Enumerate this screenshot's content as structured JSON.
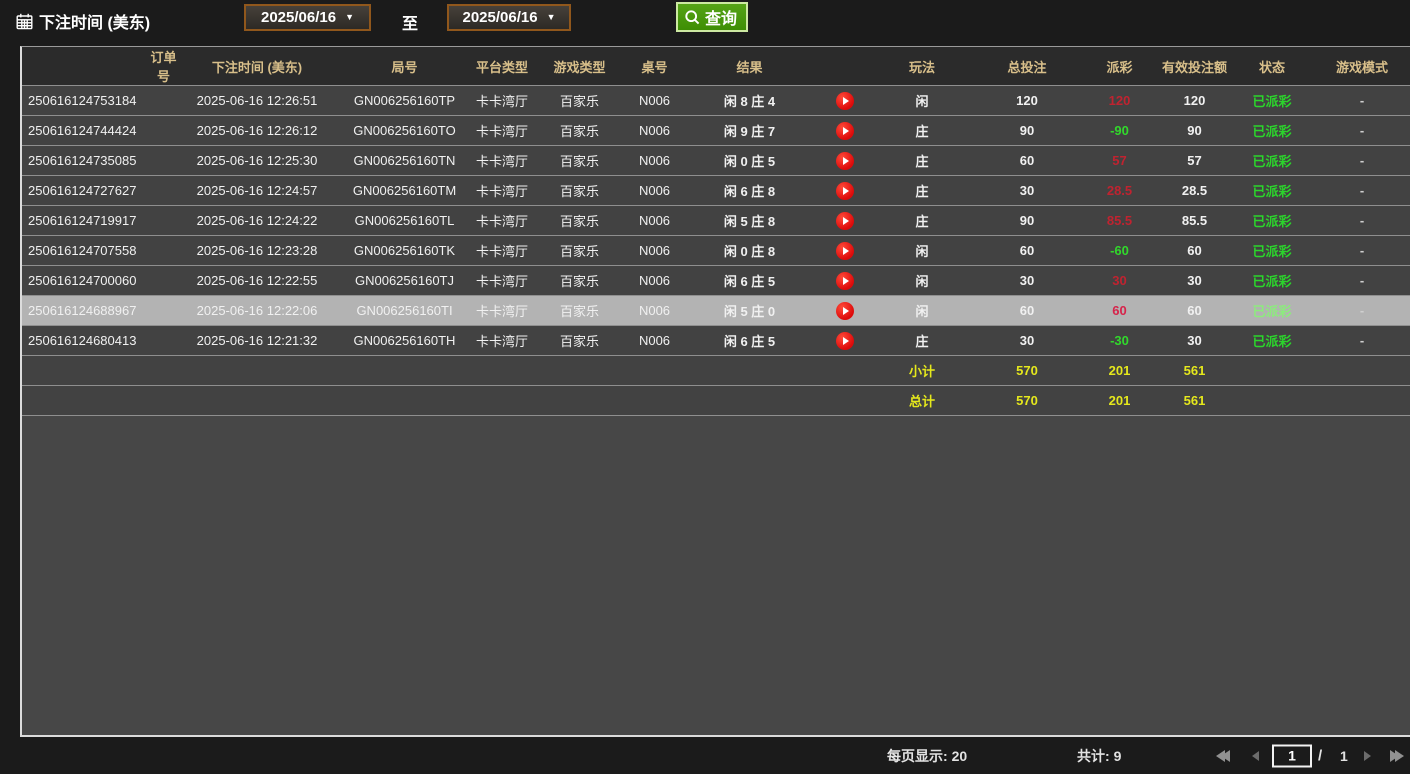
{
  "toolbar": {
    "bet_time_label": "下注时间 (美东)",
    "date_from": "2025/06/16",
    "date_to": "2025/06/16",
    "to_label": "至",
    "query_label": "查询",
    "calendar_icon": "calendar-icon",
    "search_icon": "magnifier-icon"
  },
  "table": {
    "headers": [
      "订单号",
      "下注时间 (美东)",
      "局号",
      "平台类型",
      "游戏类型",
      "桌号",
      "结果",
      "",
      "玩法",
      "总投注",
      "派彩",
      "有效投注额",
      "状态",
      "游戏模式"
    ],
    "rows": [
      {
        "order": "250616124753184",
        "time": "2025-06-16 12:26:51",
        "round": "GN006256160TP",
        "platform": "卡卡湾厅",
        "game": "百家乐",
        "table_no": "N006",
        "result": "闲 8 庄 4",
        "play": "闲",
        "bet": "120",
        "payout": "120",
        "payout_sign": "pos",
        "valid": "120",
        "status": "已派彩",
        "mode": "-",
        "highlight": false
      },
      {
        "order": "250616124744424",
        "time": "2025-06-16 12:26:12",
        "round": "GN006256160TO",
        "platform": "卡卡湾厅",
        "game": "百家乐",
        "table_no": "N006",
        "result": "闲 9 庄 7",
        "play": "庄",
        "bet": "90",
        "payout": "-90",
        "payout_sign": "neg",
        "valid": "90",
        "status": "已派彩",
        "mode": "-",
        "highlight": false
      },
      {
        "order": "250616124735085",
        "time": "2025-06-16 12:25:30",
        "round": "GN006256160TN",
        "platform": "卡卡湾厅",
        "game": "百家乐",
        "table_no": "N006",
        "result": "闲 0 庄 5",
        "play": "庄",
        "bet": "60",
        "payout": "57",
        "payout_sign": "pos",
        "valid": "57",
        "status": "已派彩",
        "mode": "-",
        "highlight": false
      },
      {
        "order": "250616124727627",
        "time": "2025-06-16 12:24:57",
        "round": "GN006256160TM",
        "platform": "卡卡湾厅",
        "game": "百家乐",
        "table_no": "N006",
        "result": "闲 6 庄 8",
        "play": "庄",
        "bet": "30",
        "payout": "28.5",
        "payout_sign": "pos",
        "valid": "28.5",
        "status": "已派彩",
        "mode": "-",
        "highlight": false
      },
      {
        "order": "250616124719917",
        "time": "2025-06-16 12:24:22",
        "round": "GN006256160TL",
        "platform": "卡卡湾厅",
        "game": "百家乐",
        "table_no": "N006",
        "result": "闲 5 庄 8",
        "play": "庄",
        "bet": "90",
        "payout": "85.5",
        "payout_sign": "pos",
        "valid": "85.5",
        "status": "已派彩",
        "mode": "-",
        "highlight": false
      },
      {
        "order": "250616124707558",
        "time": "2025-06-16 12:23:28",
        "round": "GN006256160TK",
        "platform": "卡卡湾厅",
        "game": "百家乐",
        "table_no": "N006",
        "result": "闲 0 庄 8",
        "play": "闲",
        "bet": "60",
        "payout": "-60",
        "payout_sign": "neg",
        "valid": "60",
        "status": "已派彩",
        "mode": "-",
        "highlight": false
      },
      {
        "order": "250616124700060",
        "time": "2025-06-16 12:22:55",
        "round": "GN006256160TJ",
        "platform": "卡卡湾厅",
        "game": "百家乐",
        "table_no": "N006",
        "result": "闲 6 庄 5",
        "play": "闲",
        "bet": "30",
        "payout": "30",
        "payout_sign": "pos",
        "valid": "30",
        "status": "已派彩",
        "mode": "-",
        "highlight": false
      },
      {
        "order": "250616124688967",
        "time": "2025-06-16 12:22:06",
        "round": "GN006256160TI",
        "platform": "卡卡湾厅",
        "game": "百家乐",
        "table_no": "N006",
        "result": "闲 5 庄 0",
        "play": "闲",
        "bet": "60",
        "payout": "60",
        "payout_sign": "pos",
        "valid": "60",
        "status": "已派彩",
        "mode": "-",
        "highlight": true
      },
      {
        "order": "250616124680413",
        "time": "2025-06-16 12:21:32",
        "round": "GN006256160TH",
        "platform": "卡卡湾厅",
        "game": "百家乐",
        "table_no": "N006",
        "result": "闲 6 庄 5",
        "play": "庄",
        "bet": "30",
        "payout": "-30",
        "payout_sign": "neg",
        "valid": "30",
        "status": "已派彩",
        "mode": "-",
        "highlight": false
      }
    ],
    "subtotal": {
      "label": "小计",
      "bet": "570",
      "payout": "201",
      "valid": "561"
    },
    "grand_total": {
      "label": "总计",
      "bet": "570",
      "payout": "201",
      "valid": "561"
    },
    "play_icon": "play-icon"
  },
  "footer": {
    "per_page_label": "每页显示:",
    "per_page_value": "20",
    "total_label": "共计:",
    "total_value": "9",
    "page_value": "1",
    "page_separator": "/",
    "total_pages": "1"
  },
  "colors": {
    "payout_positive_red": "#c02330",
    "payout_negative_green": "#31d92b",
    "status_green": "#2bd52b",
    "totals_yellow": "#e5e81c",
    "header_gold": "#d8bf8a",
    "query_button_green": "#459405",
    "date_border_brown": "#90571c",
    "highlight_row_gray": "#b3b3b3"
  }
}
